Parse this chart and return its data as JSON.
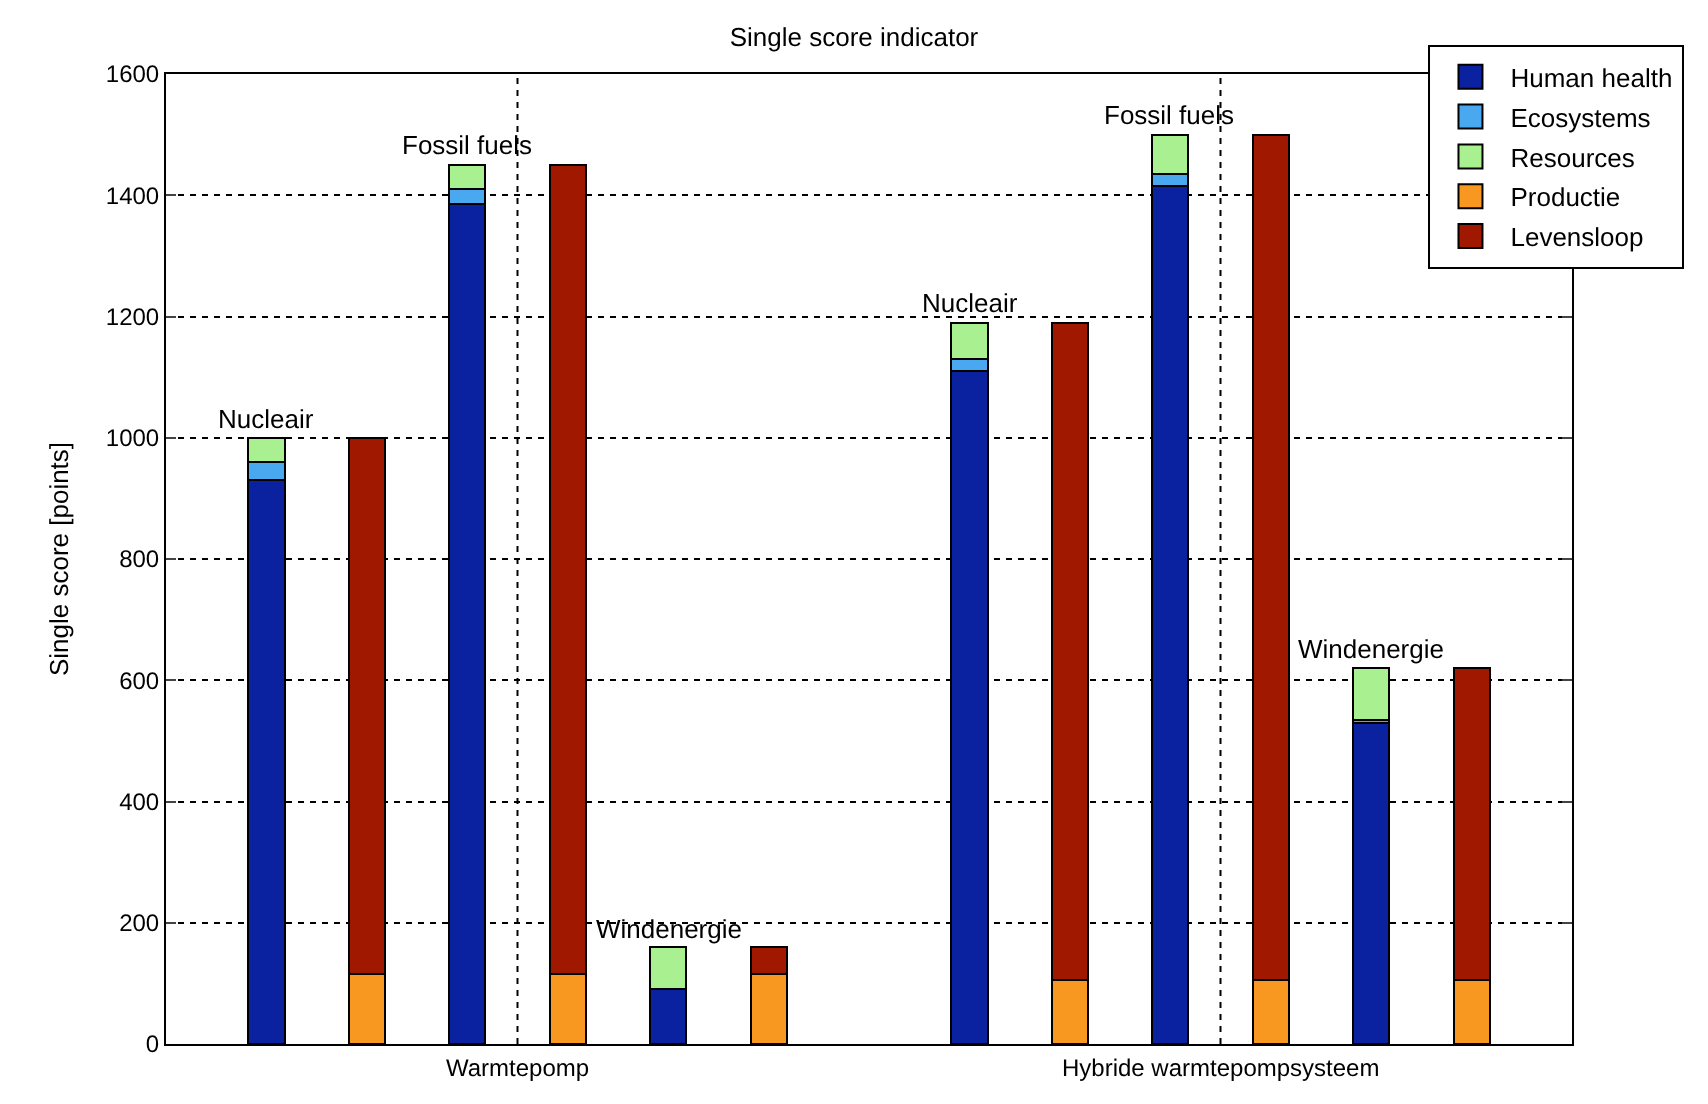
{
  "chart_data": {
    "type": "bar",
    "title": "Single score indicator",
    "ylabel": "Single score [points]",
    "stacked": true,
    "categories": [
      null,
      null,
      null,
      null,
      null,
      null,
      null,
      null,
      null,
      null,
      null,
      null,
      null
    ],
    "series": [
      {
        "name": "Human health",
        "color": "#0a22a0",
        "values": [
          930,
          null,
          1385,
          null,
          90,
          null,
          null,
          1110,
          null,
          1415,
          null,
          530,
          null
        ]
      },
      {
        "name": "Ecosystems",
        "color": "#4aa8f0",
        "values": [
          30,
          null,
          25,
          null,
          0,
          null,
          null,
          20,
          null,
          20,
          null,
          5,
          null
        ]
      },
      {
        "name": "Resources",
        "color": "#a8f090",
        "values": [
          40,
          null,
          40,
          null,
          70,
          null,
          null,
          60,
          null,
          65,
          null,
          85,
          null
        ]
      },
      {
        "name": "Productie",
        "color": "#f89820",
        "values": [
          null,
          115,
          null,
          115,
          null,
          115,
          null,
          null,
          105,
          null,
          105,
          null,
          105
        ]
      },
      {
        "name": "Levensloop",
        "color": "#a01800",
        "values": [
          null,
          885,
          null,
          1335,
          null,
          45,
          null,
          null,
          1085,
          null,
          1395,
          null,
          515
        ]
      }
    ],
    "ylim": [
      0,
      1600
    ],
    "yticks": [
      0,
      200,
      400,
      600,
      800,
      1000,
      1200,
      1400,
      1600
    ],
    "annotations": [
      "Warmtepomp",
      "Hybride warmtepompsysteem",
      {
        "text": "Nucleair",
        "y": 1000
      },
      {
        "text": "Fossil fuels",
        "y": 1450
      },
      {
        "text": "Windenergie",
        "y": 160
      },
      {
        "text": "Nucleair",
        "y": 1190
      },
      {
        "text": "Fossil fuels",
        "y": 1500
      },
      {
        "text": "Windenergie",
        "y": 620
      }
    ],
    "grid": true,
    "legend": "top right"
  }
}
